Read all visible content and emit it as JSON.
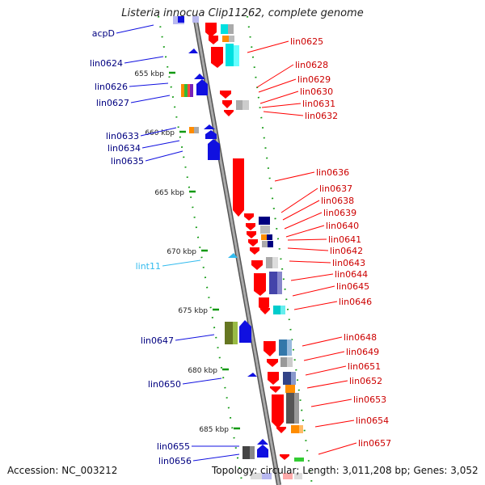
{
  "title": "Listeria innocua Clip11262, complete genome",
  "footer": {
    "accession": "Accession: NC_003212",
    "summary": "Topology: circular; Length: 3,011,208 bp; Genes: 3,052"
  },
  "colors": {
    "forward_gene": "#1010e0",
    "reverse_gene": "#ff0000",
    "forward_label": "#000080",
    "reverse_label": "#cc0000",
    "rna_label": "#33bbee",
    "backbone": "#888888",
    "scale": "#119911"
  },
  "scale_ticks": [
    {
      "kbp": 655,
      "label": "655 kbp"
    },
    {
      "kbp": 660,
      "label": "660 kbp"
    },
    {
      "kbp": 665,
      "label": "665 kbp"
    },
    {
      "kbp": 670,
      "label": "670 kbp"
    },
    {
      "kbp": 675,
      "label": "675 kbp"
    },
    {
      "kbp": 680,
      "label": "680 kbp"
    },
    {
      "kbp": 685,
      "label": "685 kbp"
    }
  ],
  "left_labels": [
    {
      "text": "acpD",
      "kind": "forward"
    },
    {
      "text": "lin0624",
      "kind": "forward"
    },
    {
      "text": "lin0626",
      "kind": "forward"
    },
    {
      "text": "lin0627",
      "kind": "forward"
    },
    {
      "text": "lin0633",
      "kind": "forward"
    },
    {
      "text": "lin0634",
      "kind": "forward"
    },
    {
      "text": "lin0635",
      "kind": "forward"
    },
    {
      "text": "lint11",
      "kind": "rna"
    },
    {
      "text": "lin0647",
      "kind": "forward"
    },
    {
      "text": "lin0650",
      "kind": "forward"
    },
    {
      "text": "lin0655",
      "kind": "forward"
    },
    {
      "text": "lin0656",
      "kind": "forward"
    }
  ],
  "right_labels": [
    {
      "text": "lin0625"
    },
    {
      "text": "lin0628"
    },
    {
      "text": "lin0629"
    },
    {
      "text": "lin0630"
    },
    {
      "text": "lin0631"
    },
    {
      "text": "lin0632"
    },
    {
      "text": "lin0636"
    },
    {
      "text": "lin0637"
    },
    {
      "text": "lin0638"
    },
    {
      "text": "lin0639"
    },
    {
      "text": "lin0640"
    },
    {
      "text": "lin0641"
    },
    {
      "text": "lin0642"
    },
    {
      "text": "lin0643"
    },
    {
      "text": "lin0644"
    },
    {
      "text": "lin0645"
    },
    {
      "text": "lin0646"
    },
    {
      "text": "lin0648"
    },
    {
      "text": "lin0649"
    },
    {
      "text": "lin0651"
    },
    {
      "text": "lin0652"
    },
    {
      "text": "lin0653"
    },
    {
      "text": "lin0654"
    },
    {
      "text": "lin0657"
    }
  ]
}
